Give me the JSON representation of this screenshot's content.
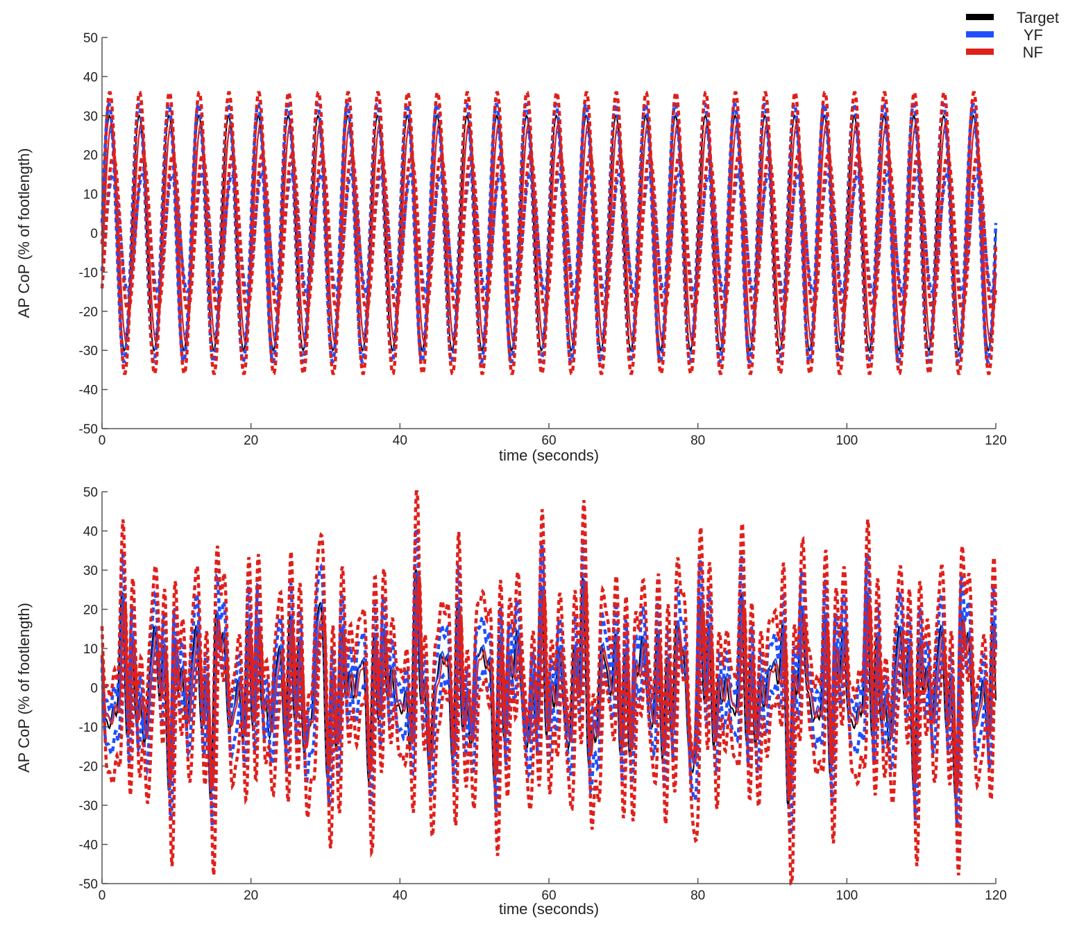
{
  "legend": {
    "placement": "top-right",
    "entries": [
      {
        "label": "Target",
        "color": "#000000"
      },
      {
        "label": "YF",
        "color": "#1f4fff"
      },
      {
        "label": "NF",
        "color": "#e0201b"
      }
    ]
  },
  "chart_data": [
    {
      "type": "line",
      "title": "",
      "xlabel": "time (seconds)",
      "ylabel": "AP CoP (% of footlength)",
      "xlim": [
        0,
        120
      ],
      "ylim": [
        -50,
        50
      ],
      "xticks": [
        0,
        20,
        40,
        60,
        80,
        100,
        120
      ],
      "yticks": [
        -50,
        -40,
        -30,
        -20,
        -10,
        0,
        10,
        20,
        30,
        40,
        50
      ],
      "grid": false,
      "signal": "sinusoid",
      "target_amplitude": 30,
      "period_seconds": 4,
      "series": [
        {
          "name": "Target",
          "style": "solid",
          "amplitude": 30,
          "phase": 0
        },
        {
          "name": "YF",
          "style": "solid",
          "amplitude": 26,
          "phase": 0.15
        },
        {
          "name": "YF",
          "style": "dashed",
          "amplitude": 33,
          "phase": -0.05
        },
        {
          "name": "YF",
          "style": "dashed",
          "amplitude": 15,
          "phase": 0.45
        },
        {
          "name": "NF",
          "style": "solid",
          "amplitude": 28,
          "phase": 0.25
        },
        {
          "name": "NF",
          "style": "dashed",
          "amplitude": 36,
          "phase": 0.05
        },
        {
          "name": "NF",
          "style": "dashed",
          "amplitude": 20,
          "phase": 0.5
        }
      ]
    },
    {
      "type": "line",
      "title": "",
      "xlabel": "time (seconds)",
      "ylabel": "AP CoP (% of footlength)",
      "xlim": [
        0,
        120
      ],
      "ylim": [
        -50,
        50
      ],
      "xticks": [
        0,
        20,
        40,
        60,
        80,
        100,
        120
      ],
      "yticks": [
        -50,
        -40,
        -30,
        -20,
        -10,
        0,
        10,
        20,
        30,
        40,
        50
      ],
      "grid": false,
      "signal": "pseudo-random sum of sinusoids",
      "target_amplitude": 30,
      "series": [
        {
          "name": "Target",
          "style": "solid",
          "scale": 1.0,
          "offset": 0,
          "lag": 0
        },
        {
          "name": "YF",
          "style": "solid",
          "scale": 0.95,
          "offset": 1,
          "lag": 0.2
        },
        {
          "name": "YF",
          "style": "dashed",
          "scale": 1.15,
          "offset": 6,
          "lag": 0.1
        },
        {
          "name": "YF",
          "style": "dashed",
          "scale": 1.05,
          "offset": -6,
          "lag": 0.3
        },
        {
          "name": "NF",
          "style": "solid",
          "scale": 0.9,
          "offset": 0,
          "lag": 0.35
        },
        {
          "name": "NF",
          "style": "dashed",
          "scale": 1.3,
          "offset": 11,
          "lag": 0.15
        },
        {
          "name": "NF",
          "style": "dashed",
          "scale": 1.3,
          "offset": -11,
          "lag": 0.45
        }
      ]
    }
  ]
}
